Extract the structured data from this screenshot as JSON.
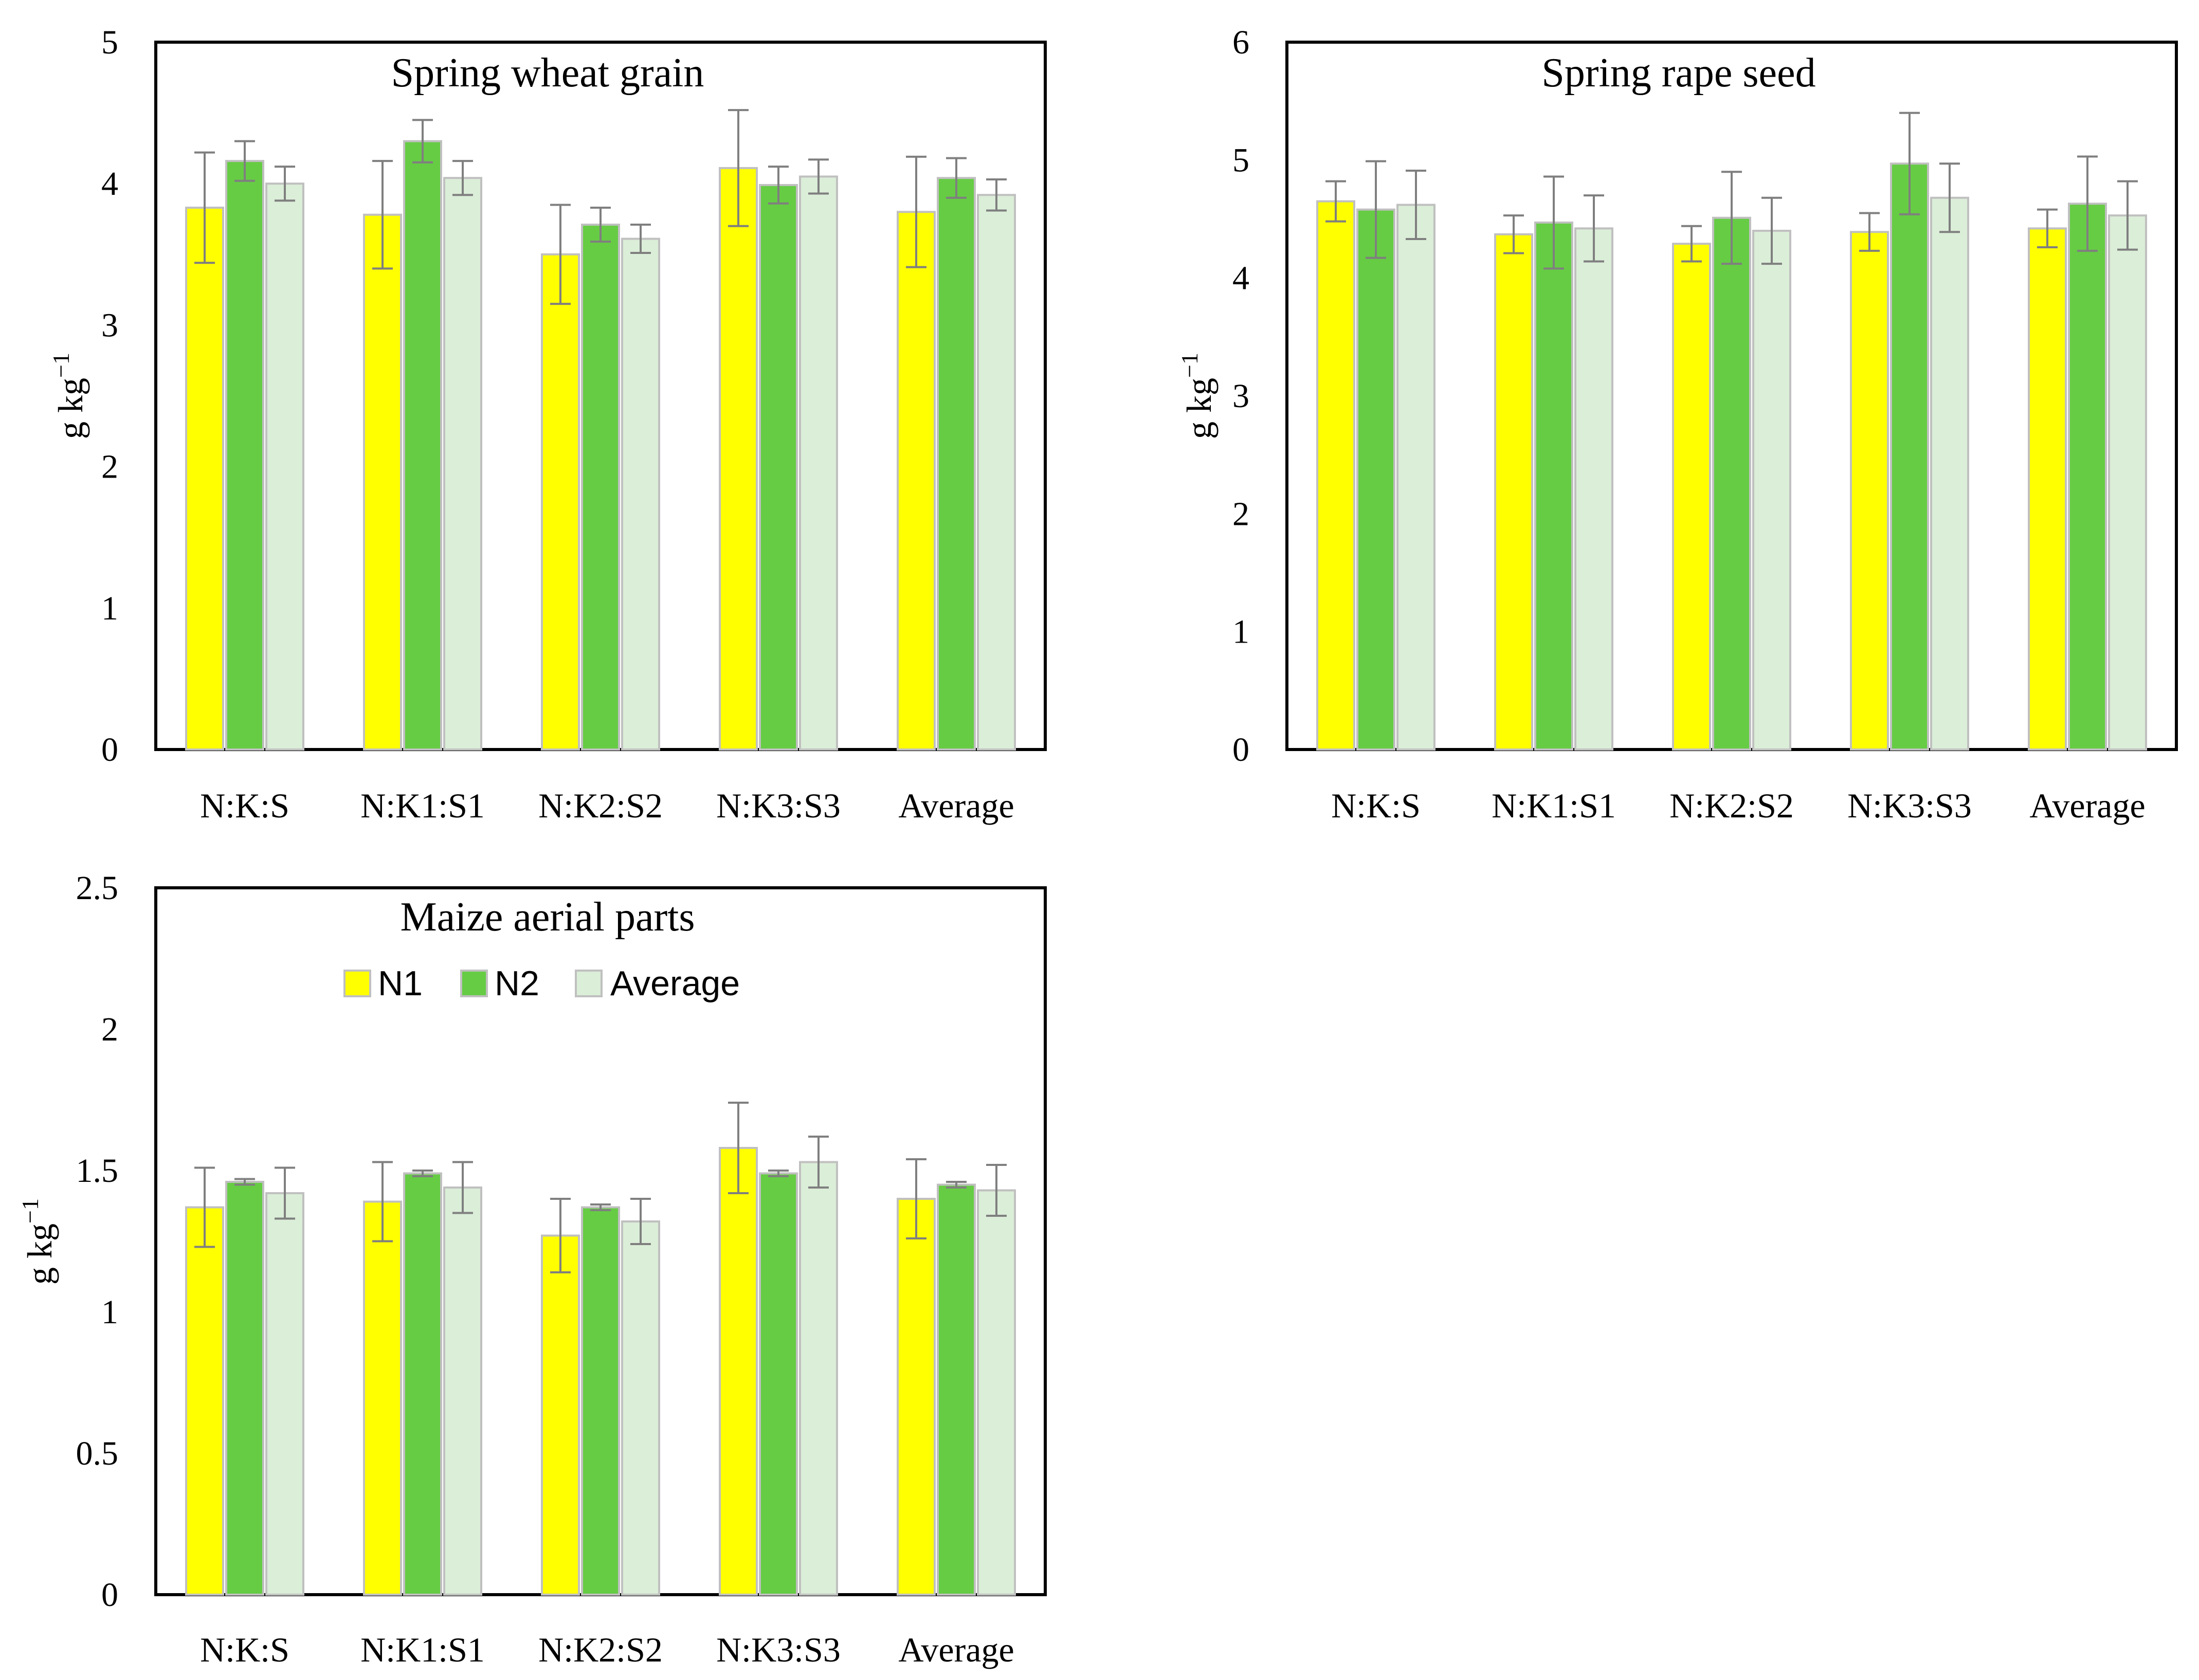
{
  "colors": {
    "N1": "#ffff00",
    "N2": "#66cc44",
    "Average": "#dbeed8",
    "bar_outline": "#c0c0c0",
    "error_bar": "#7f7f7f",
    "frame": "#000000"
  },
  "legend": {
    "items": [
      "N1",
      "N2",
      "Average"
    ]
  },
  "chart_data": [
    {
      "type": "bar",
      "title": "Spring wheat grain",
      "ylabel": "g kg",
      "ylabel_superscript": "−1",
      "xlabel": "",
      "ylim": [
        0,
        5
      ],
      "yticks": [
        "0",
        "1",
        "2",
        "3",
        "4",
        "5"
      ],
      "categories": [
        "N:K:S",
        "N:K1:S1",
        "N:K2:S2",
        "N:K3:S3",
        "Average"
      ],
      "series": [
        {
          "name": "N1",
          "values": [
            3.83,
            3.78,
            3.5,
            4.11,
            3.8
          ],
          "errors": [
            0.39,
            0.38,
            0.35,
            0.41,
            0.39
          ]
        },
        {
          "name": "N2",
          "values": [
            4.16,
            4.3,
            3.71,
            3.99,
            4.04
          ],
          "errors": [
            0.14,
            0.15,
            0.12,
            0.13,
            0.14
          ]
        },
        {
          "name": "Average",
          "values": [
            4.0,
            4.04,
            3.61,
            4.05,
            3.92
          ],
          "errors": [
            0.12,
            0.12,
            0.1,
            0.12,
            0.11
          ]
        }
      ]
    },
    {
      "type": "bar",
      "title": "Spring rape seed",
      "ylabel": "g kg",
      "ylabel_superscript": "−1",
      "xlabel": "",
      "ylim": [
        0,
        6
      ],
      "yticks": [
        "0",
        "1",
        "2",
        "3",
        "4",
        "5",
        "6"
      ],
      "categories": [
        "N:K:S",
        "N:K1:S1",
        "N:K2:S2",
        "N:K3:S3",
        "Average"
      ],
      "series": [
        {
          "name": "N1",
          "values": [
            4.65,
            4.37,
            4.29,
            4.39,
            4.42
          ],
          "errors": [
            0.17,
            0.16,
            0.15,
            0.16,
            0.16
          ]
        },
        {
          "name": "N2",
          "values": [
            4.58,
            4.47,
            4.51,
            4.97,
            4.63
          ],
          "errors": [
            0.41,
            0.39,
            0.39,
            0.43,
            0.4
          ]
        },
        {
          "name": "Average",
          "values": [
            4.62,
            4.42,
            4.4,
            4.68,
            4.53
          ],
          "errors": [
            0.29,
            0.28,
            0.28,
            0.29,
            0.29
          ]
        }
      ]
    },
    {
      "type": "bar",
      "title": "Maize aerial parts",
      "ylabel": "g kg",
      "ylabel_superscript": "−1",
      "xlabel": "",
      "ylim": [
        0,
        2.5
      ],
      "yticks": [
        "0",
        "0.5",
        "1",
        "1.5",
        "2",
        "2.5"
      ],
      "legend_position": "top-center",
      "categories": [
        "N:K:S",
        "N:K1:S1",
        "N:K2:S2",
        "N:K3:S3",
        "Average"
      ],
      "series": [
        {
          "name": "N1",
          "values": [
            1.37,
            1.39,
            1.27,
            1.58,
            1.4
          ],
          "errors": [
            0.14,
            0.14,
            0.13,
            0.16,
            0.14
          ]
        },
        {
          "name": "N2",
          "values": [
            1.46,
            1.49,
            1.37,
            1.49,
            1.45
          ],
          "errors": [
            0.01,
            0.01,
            0.01,
            0.01,
            0.01
          ]
        },
        {
          "name": "Average",
          "values": [
            1.42,
            1.44,
            1.32,
            1.53,
            1.43
          ],
          "errors": [
            0.09,
            0.09,
            0.08,
            0.09,
            0.09
          ]
        }
      ]
    }
  ]
}
